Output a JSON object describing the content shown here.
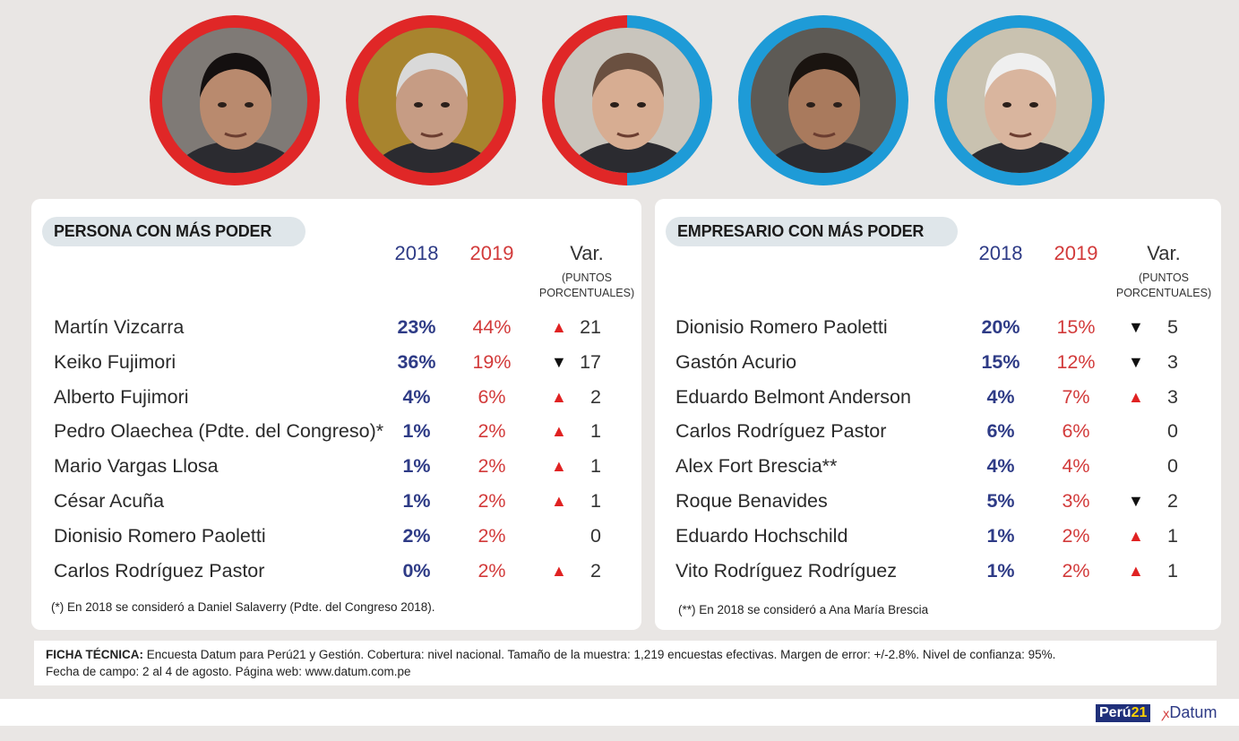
{
  "colors": {
    "red": "#e02727",
    "blue": "#1e9bd7",
    "navy": "#2e3b86"
  },
  "portraits": [
    {
      "name": "portrait-keiko-fujimori",
      "ring": "red"
    },
    {
      "name": "portrait-pedro-olaechea",
      "ring": "red"
    },
    {
      "name": "portrait-half-red-blue",
      "ring": "split"
    },
    {
      "name": "portrait-gaston-acurio",
      "ring": "blue"
    },
    {
      "name": "portrait-dionisio-romero",
      "ring": "blue"
    }
  ],
  "chart_data": [
    {
      "type": "table",
      "title": "PERSONA CON MÁS PODER",
      "columns": [
        "2018",
        "2019",
        "Var."
      ],
      "var_subtitle_line1": "(PUNTOS",
      "var_subtitle_line2": "PORCENTUALES)",
      "rows": [
        {
          "name": "Martín Vizcarra",
          "v2018": "23%",
          "v2019": "44%",
          "dir": "up",
          "var": "21"
        },
        {
          "name": "Keiko Fujimori",
          "v2018": "36%",
          "v2019": "19%",
          "dir": "down",
          "var": "17"
        },
        {
          "name": "Alberto Fujimori",
          "v2018": "4%",
          "v2019": "6%",
          "dir": "up",
          "var": "2"
        },
        {
          "name": "Pedro Olaechea (Pdte. del Congreso)*",
          "v2018": "1%",
          "v2019": "2%",
          "dir": "up",
          "var": "1"
        },
        {
          "name": "Mario Vargas Llosa",
          "v2018": "1%",
          "v2019": "2%",
          "dir": "up",
          "var": "1"
        },
        {
          "name": "César Acuña",
          "v2018": "1%",
          "v2019": "2%",
          "dir": "up",
          "var": "1"
        },
        {
          "name": "Dionisio Romero Paoletti",
          "v2018": "2%",
          "v2019": "2%",
          "dir": "none",
          "var": "0"
        },
        {
          "name": "Carlos Rodríguez Pastor",
          "v2018": "0%",
          "v2019": "2%",
          "dir": "up",
          "var": "2"
        }
      ],
      "note": "(*) En 2018 se consideró a Daniel Salaverry (Pdte. del Congreso 2018)."
    },
    {
      "type": "table",
      "title": "EMPRESARIO CON MÁS PODER",
      "columns": [
        "2018",
        "2019",
        "Var."
      ],
      "var_subtitle_line1": "(PUNTOS",
      "var_subtitle_line2": "PORCENTUALES)",
      "rows": [
        {
          "name": "Dionisio Romero Paoletti",
          "v2018": "20%",
          "v2019": "15%",
          "dir": "down",
          "var": "5"
        },
        {
          "name": "Gastón Acurio",
          "v2018": "15%",
          "v2019": "12%",
          "dir": "down",
          "var": "3"
        },
        {
          "name": "Eduardo Belmont Anderson",
          "v2018": "4%",
          "v2019": "7%",
          "dir": "up",
          "var": "3"
        },
        {
          "name": "Carlos Rodríguez Pastor",
          "v2018": "6%",
          "v2019": "6%",
          "dir": "none",
          "var": "0"
        },
        {
          "name": "Alex Fort Brescia**",
          "v2018": "4%",
          "v2019": "4%",
          "dir": "none",
          "var": "0"
        },
        {
          "name": "Roque Benavides",
          "v2018": "5%",
          "v2019": "3%",
          "dir": "down",
          "var": "2"
        },
        {
          "name": "Eduardo Hochschild",
          "v2018": "1%",
          "v2019": "2%",
          "dir": "up",
          "var": "1"
        },
        {
          "name": "Vito Rodríguez Rodríguez",
          "v2018": "1%",
          "v2019": "2%",
          "dir": "up",
          "var": "1"
        }
      ],
      "note": "(**) En 2018 se consideró a Ana María Brescia"
    }
  ],
  "ficha": {
    "label": "FICHA TÉCNICA:",
    "line1": " Encuesta Datum para Perú21 y Gestión. Cobertura: nivel nacional. Tamaño de la muestra: 1,219 encuestas efectivas. Margen de error: +/-2.8%. Nivel de confianza: 95%.",
    "line2": "Fecha de campo: 2 al 4 de agosto. Página web: www.datum.com.pe"
  },
  "logos": {
    "peru_a": "Perú",
    "peru_b": "21",
    "datum": "Datum",
    "datum_mark": "ꭗ"
  }
}
